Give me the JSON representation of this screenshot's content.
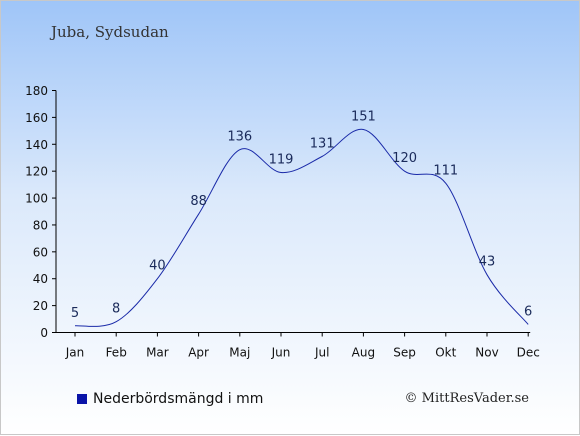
{
  "location": "Juba, Sydsudan",
  "legend_label": "Nederbördsmängd i mm",
  "copyright": "© MittResVader.se",
  "colors": {
    "line": "#1a2aa8",
    "legend_swatch": "#0a14a8",
    "axis": "#000000",
    "label": "#1a2a5a"
  },
  "chart_data": {
    "type": "line",
    "title": "",
    "xlabel": "",
    "ylabel": "",
    "categories": [
      "Jan",
      "Feb",
      "Mar",
      "Apr",
      "Maj",
      "Jun",
      "Jul",
      "Aug",
      "Sep",
      "Okt",
      "Nov",
      "Dec"
    ],
    "series": [
      {
        "name": "Nederbördsmängd i mm",
        "values": [
          5,
          8,
          40,
          88,
          136,
          119,
          131,
          151,
          120,
          111,
          43,
          6
        ]
      }
    ],
    "ylim": [
      0,
      180
    ],
    "yticks": [
      0,
      20,
      40,
      60,
      80,
      100,
      120,
      140,
      160,
      180
    ],
    "grid": false,
    "legend": "bottom-left"
  }
}
